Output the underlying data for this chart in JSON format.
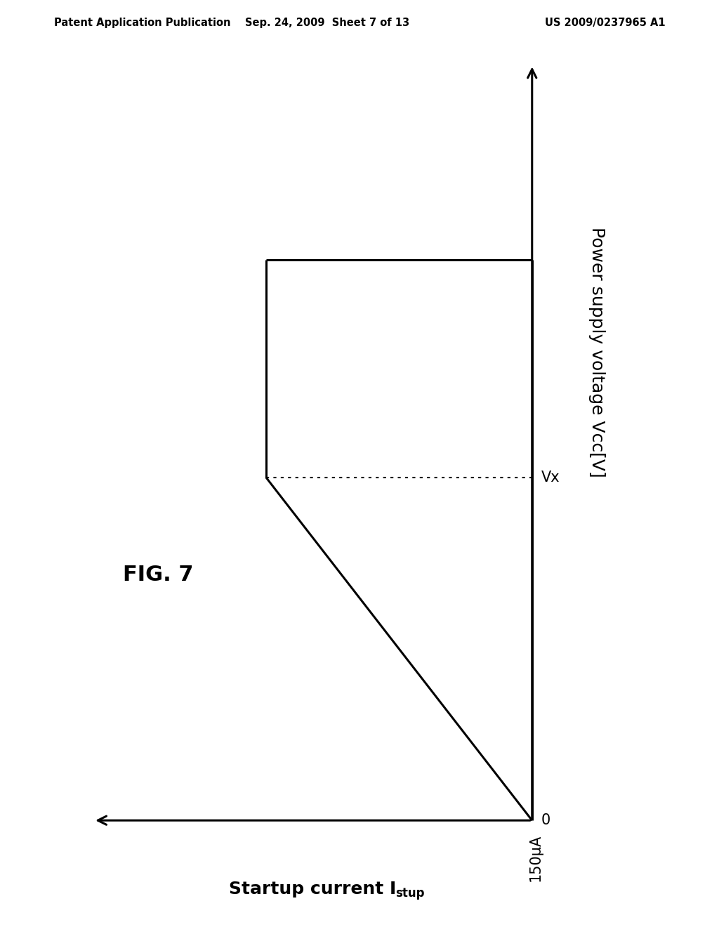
{
  "header_left": "Patent Application Publication",
  "header_mid": "Sep. 24, 2009  Sheet 7 of 13",
  "header_right": "US 2009/0237965 A1",
  "fig_label": "FIG. 7",
  "ylabel": "Power supply voltage Vcc[V]",
  "xlabel_main": "Startup current I",
  "xlabel_sub": "stup",
  "x_tick_label": "150μA",
  "y_tick_label": "Vx",
  "origin_label": "0",
  "background_color": "#ffffff",
  "line_color": "#000000",
  "header_fontsize": 10.5,
  "axis_label_fontsize": 18,
  "fig_label_fontsize": 22,
  "tick_label_fontsize": 15
}
